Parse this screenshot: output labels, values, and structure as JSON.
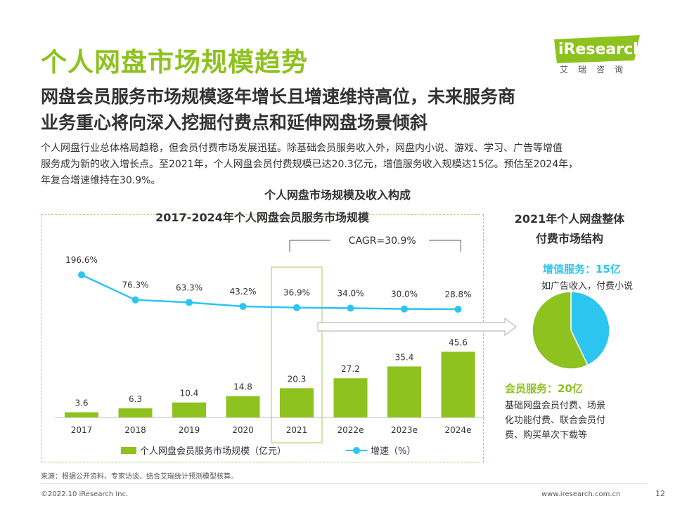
{
  "header": {
    "title": "个人网盘市场规模趋势",
    "subtitle_line1": "网盘会员服务市场规模逐年增长且增速维持高位，未来服务商",
    "subtitle_line2": "业务重心将向深入挖掘付费点和延伸网盘场景倾斜",
    "logo_text": "iResearch",
    "logo_sub": "艾瑞咨询"
  },
  "description": {
    "line1": "个人网盘行业总体格局趋稳，但会员付费市场发展迅猛。除基础会员服务收入外，网盘内小说、游戏、学习、广告等增值",
    "line2": "服务成为新的收入增长点。至2021年，个人网盘会员付费规模已达20.3亿元，增值服务收入规模达15亿。预估至2024年，",
    "line3": "年复合增速维持在30.9%。"
  },
  "section_title": "个人网盘市场规模及收入构成",
  "colors": {
    "brand_green": "#8dc21f",
    "line_blue": "#2cc5f0",
    "logo_bg": "#8dc21f"
  },
  "chart_data": [
    {
      "type": "bar",
      "title": "2017-2024年个人网盘会员服务市场规模",
      "categories": [
        "2017",
        "2018",
        "2019",
        "2020",
        "2021",
        "2022e",
        "2023e",
        "2024e"
      ],
      "series": [
        {
          "name": "个人网盘会员服务市场规模（亿元）",
          "type": "bar",
          "values": [
            3.6,
            6.3,
            10.4,
            14.8,
            20.3,
            27.2,
            35.4,
            45.6
          ],
          "labels": [
            "3.6",
            "6.3",
            "10.4",
            "14.8",
            "20.3",
            "27.2",
            "35.4",
            "45.6"
          ]
        },
        {
          "name": "增速（%）",
          "type": "line",
          "values": [
            196.6,
            76.3,
            63.3,
            43.2,
            36.9,
            34.0,
            30.0,
            28.8
          ],
          "labels": [
            "196.6%",
            "76.3%",
            "63.3%",
            "43.2%",
            "36.9%",
            "34.0%",
            "30.0%",
            "28.8%"
          ]
        }
      ],
      "annotation": "CAGR=30.9%",
      "highlight_category": "2021",
      "legend_position": "bottom"
    },
    {
      "type": "pie",
      "title_line1": "2021年个人网盘整体",
      "title_line2": "付费市场结构",
      "slices": [
        {
          "name": "增值服务：15亿",
          "value": 15,
          "color": "#2cc5f0",
          "desc": [
            "如广告收入，付费小说"
          ]
        },
        {
          "name": "会员服务：20亿",
          "value": 20,
          "color": "#8dc21f",
          "desc": [
            "基础网盘会员付费、场景",
            "化功能付费、联合会员付",
            "费、购买单次下载等"
          ]
        }
      ]
    }
  ],
  "footer": {
    "source": "来源：根据公开资料、专家访谈，结合艾瑞统计预测模型核算。",
    "copyright": "©2022.10 iResearch Inc.",
    "website": "www.iresearch.com.cn",
    "page": "12"
  }
}
